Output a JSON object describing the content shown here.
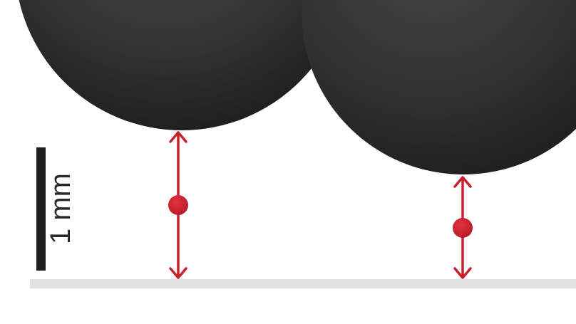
{
  "scale_bar": {
    "label": "1 mm"
  },
  "colors": {
    "background": "#ffffff",
    "sphere_light": "#4a4a4a",
    "sphere_dark": "#1c1c1c",
    "substrate": "#e2e2e2",
    "arrow": "#c8202e",
    "scale_bar": "#1e1e1e"
  },
  "objects": {
    "spheres": [
      "sphere-left",
      "sphere-middle",
      "sphere-right-partial"
    ],
    "arrows": [
      "gap-arrow-left",
      "gap-arrow-right"
    ]
  }
}
